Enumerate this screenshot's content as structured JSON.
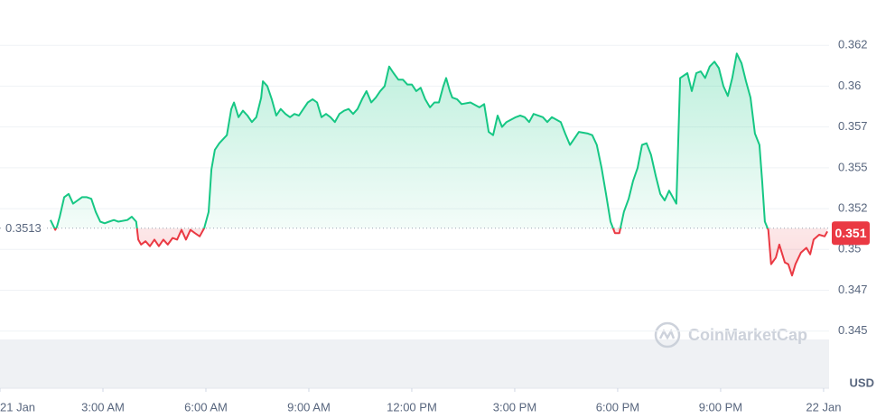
{
  "chart_data": {
    "type": "line",
    "x": [
      1.47,
      1.61,
      1.66,
      1.74,
      1.87,
      2,
      2.13,
      2.26,
      2.39,
      2.53,
      2.66,
      2.79,
      2.92,
      3.05,
      3.18,
      3.32,
      3.45,
      3.71,
      3.84,
      3.97,
      4.03,
      4.11,
      4.24,
      4.37,
      4.5,
      4.63,
      4.76,
      4.89,
      5.03,
      5.16,
      5.29,
      5.42,
      5.55,
      5.68,
      5.82,
      5.95,
      6.08,
      6.16,
      6.26,
      6.39,
      6.61,
      6.74,
      6.82,
      6.95,
      7.08,
      7.21,
      7.34,
      7.47,
      7.61,
      7.66,
      7.79,
      7.92,
      8.05,
      8.18,
      8.32,
      8.45,
      8.58,
      8.71,
      8.84,
      8.97,
      9.11,
      9.24,
      9.37,
      9.5,
      9.63,
      9.76,
      9.89,
      10.03,
      10.16,
      10.29,
      10.42,
      10.55,
      10.68,
      10.82,
      10.95,
      11.08,
      11.21,
      11.34,
      11.47,
      11.61,
      11.74,
      11.87,
      12,
      12.13,
      12.26,
      12.39,
      12.53,
      12.66,
      12.79,
      12.92,
      13,
      13.11,
      13.18,
      13.32,
      13.45,
      13.71,
      13.97,
      14.11,
      14.24,
      14.37,
      14.5,
      14.63,
      14.76,
      15.03,
      15.16,
      15.29,
      15.42,
      15.55,
      15.82,
      15.95,
      16.08,
      16.34,
      16.47,
      16.61,
      16.74,
      16.87,
      17.13,
      17.26,
      17.39,
      17.53,
      17.66,
      17.79,
      17.92,
      18.05,
      18.18,
      18.32,
      18.45,
      18.58,
      18.71,
      18.84,
      18.97,
      19.11,
      19.24,
      19.37,
      19.5,
      19.63,
      19.71,
      19.82,
      20.03,
      20.16,
      20.29,
      20.42,
      20.55,
      20.68,
      20.82,
      20.95,
      21.08,
      21.21,
      21.34,
      21.47,
      21.61,
      21.74,
      21.87,
      22,
      22.13,
      22.21,
      22.29,
      22.39,
      22.47,
      22.61,
      22.71,
      22.87,
      22.97,
      23.08,
      23.18,
      23.34,
      23.5,
      23.61,
      23.71,
      23.87,
      24.03,
      24.11
    ],
    "values": [
      0.3518,
      0.3512,
      0.3514,
      0.352,
      0.3532,
      0.3534,
      0.3528,
      0.353,
      0.3532,
      0.3532,
      0.3531,
      0.3523,
      0.3517,
      0.3516,
      0.3517,
      0.3518,
      0.3517,
      0.3518,
      0.352,
      0.3517,
      0.3506,
      0.3503,
      0.3505,
      0.3502,
      0.3506,
      0.3502,
      0.3506,
      0.3503,
      0.3507,
      0.3506,
      0.3512,
      0.3506,
      0.3512,
      0.351,
      0.3508,
      0.3513,
      0.3523,
      0.3549,
      0.3561,
      0.3565,
      0.357,
      0.3586,
      0.359,
      0.3581,
      0.3585,
      0.3582,
      0.3578,
      0.3581,
      0.3593,
      0.3603,
      0.36,
      0.3592,
      0.3582,
      0.3586,
      0.3583,
      0.3581,
      0.3583,
      0.3582,
      0.3586,
      0.359,
      0.3592,
      0.359,
      0.3581,
      0.3583,
      0.3581,
      0.3578,
      0.3583,
      0.3585,
      0.3586,
      0.3583,
      0.3586,
      0.3592,
      0.3597,
      0.359,
      0.3593,
      0.3597,
      0.36,
      0.3612,
      0.3608,
      0.3604,
      0.3604,
      0.3601,
      0.3601,
      0.3597,
      0.3599,
      0.3592,
      0.3587,
      0.359,
      0.359,
      0.36,
      0.3605,
      0.3597,
      0.3593,
      0.3592,
      0.3589,
      0.359,
      0.3587,
      0.3589,
      0.3572,
      0.357,
      0.3582,
      0.3575,
      0.3578,
      0.3581,
      0.3582,
      0.3581,
      0.3578,
      0.3583,
      0.3581,
      0.3578,
      0.3581,
      0.3578,
      0.3571,
      0.3564,
      0.3568,
      0.3572,
      0.3571,
      0.357,
      0.3564,
      0.355,
      0.3534,
      0.3517,
      0.351,
      0.351,
      0.3523,
      0.3531,
      0.3542,
      0.355,
      0.3564,
      0.3565,
      0.3558,
      0.3545,
      0.3534,
      0.353,
      0.3536,
      0.3531,
      0.3528,
      0.3605,
      0.3608,
      0.3597,
      0.3608,
      0.3609,
      0.3605,
      0.3612,
      0.3615,
      0.3611,
      0.36,
      0.3594,
      0.3605,
      0.362,
      0.3614,
      0.3603,
      0.3593,
      0.3571,
      0.3564,
      0.3542,
      0.3517,
      0.3512,
      0.3491,
      0.3495,
      0.3503,
      0.3492,
      0.3491,
      0.3484,
      0.3491,
      0.3498,
      0.3501,
      0.3497,
      0.3506,
      0.3509,
      0.3508,
      0.3511
    ],
    "baseline": 0.3513,
    "current_price": 0.351,
    "up_color": "#16c784",
    "down_color": "#ea3943",
    "xlim": [
      0,
      24.16
    ],
    "xticks": [
      {
        "value": 0,
        "label": "21 Jan"
      },
      {
        "value": 3,
        "label": "3:00 AM"
      },
      {
        "value": 6,
        "label": "6:00 AM"
      },
      {
        "value": 9,
        "label": "9:00 AM"
      },
      {
        "value": 12,
        "label": "12:00 PM"
      },
      {
        "value": 15,
        "label": "3:00 PM"
      },
      {
        "value": 18,
        "label": "6:00 PM"
      },
      {
        "value": 21,
        "label": "9:00 PM"
      },
      {
        "value": 24,
        "label": "22 Jan"
      }
    ],
    "ylim": [
      0.3415,
      0.365
    ],
    "yticks": [
      0.345,
      {
        "value": 0.3475,
        "label": "0.347"
      },
      0.35,
      {
        "value": 0.3525,
        "label": "0.352"
      },
      0.355,
      {
        "value": 0.3575,
        "label": "0.357"
      },
      0.36,
      {
        "value": 0.3625,
        "label": "0.362"
      }
    ],
    "grid": true,
    "currency": "USD",
    "watermark": "CoinMarketCap"
  }
}
